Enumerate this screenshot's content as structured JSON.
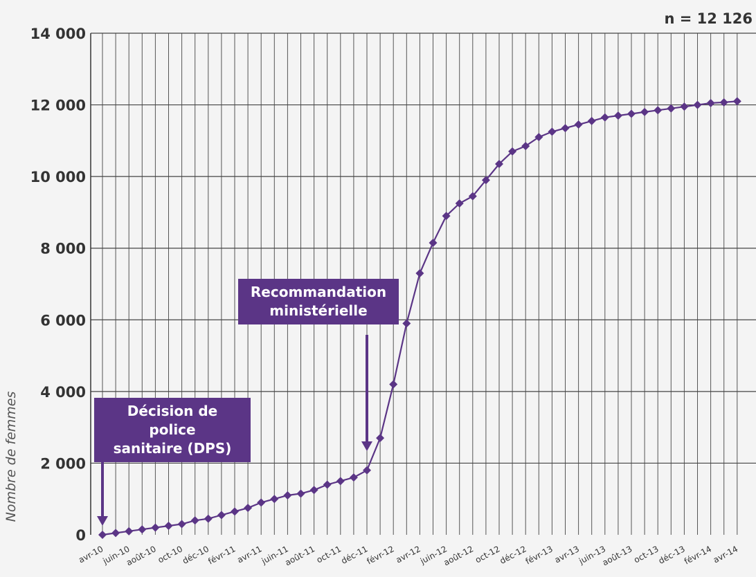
{
  "chart_data": {
    "type": "line",
    "note": "n = 12 126",
    "ylabel": "Nombre de femmes",
    "ylim": [
      0,
      14000
    ],
    "yticks": [
      0,
      2000,
      4000,
      6000,
      8000,
      10000,
      12000,
      14000
    ],
    "ytick_labels": [
      "0",
      "2 000",
      "4 000",
      "6 000",
      "8 000",
      "10 000",
      "12 000",
      "14 000"
    ],
    "grid": true,
    "x_tick_labels": [
      "avr-10",
      "juin-10",
      "août-10",
      "oct-10",
      "déc-10",
      "févr-11",
      "avr-11",
      "juin-11",
      "août-11",
      "oct-11",
      "déc-11",
      "févr-12",
      "avr-12",
      "juin-12",
      "août-12",
      "oct-12",
      "déc-12",
      "févr-13",
      "avr-13",
      "juin-13",
      "août-13",
      "oct-13",
      "déc-13",
      "févr-14",
      "avr-14"
    ],
    "series": [
      {
        "color": "#5b3586",
        "values": [
          0,
          50,
          100,
          150,
          200,
          250,
          300,
          400,
          450,
          550,
          650,
          750,
          900,
          1000,
          1100,
          1150,
          1250,
          1400,
          1500,
          1600,
          1800,
          2700,
          4200,
          5900,
          7300,
          8150,
          8900,
          9250,
          9450,
          9900,
          10350,
          10700,
          10850,
          11100,
          11250,
          11350,
          11450,
          11550,
          11650,
          11700,
          11750,
          11800,
          11850,
          11900,
          11950,
          12000,
          12050,
          12070,
          12100
        ]
      }
    ],
    "annotations": [
      {
        "lines": [
          "Décision de police",
          "sanitaire (DPS)"
        ],
        "at_index": 0
      },
      {
        "lines": [
          "Recommandation",
          "ministérielle"
        ],
        "at_index": 20
      }
    ]
  }
}
